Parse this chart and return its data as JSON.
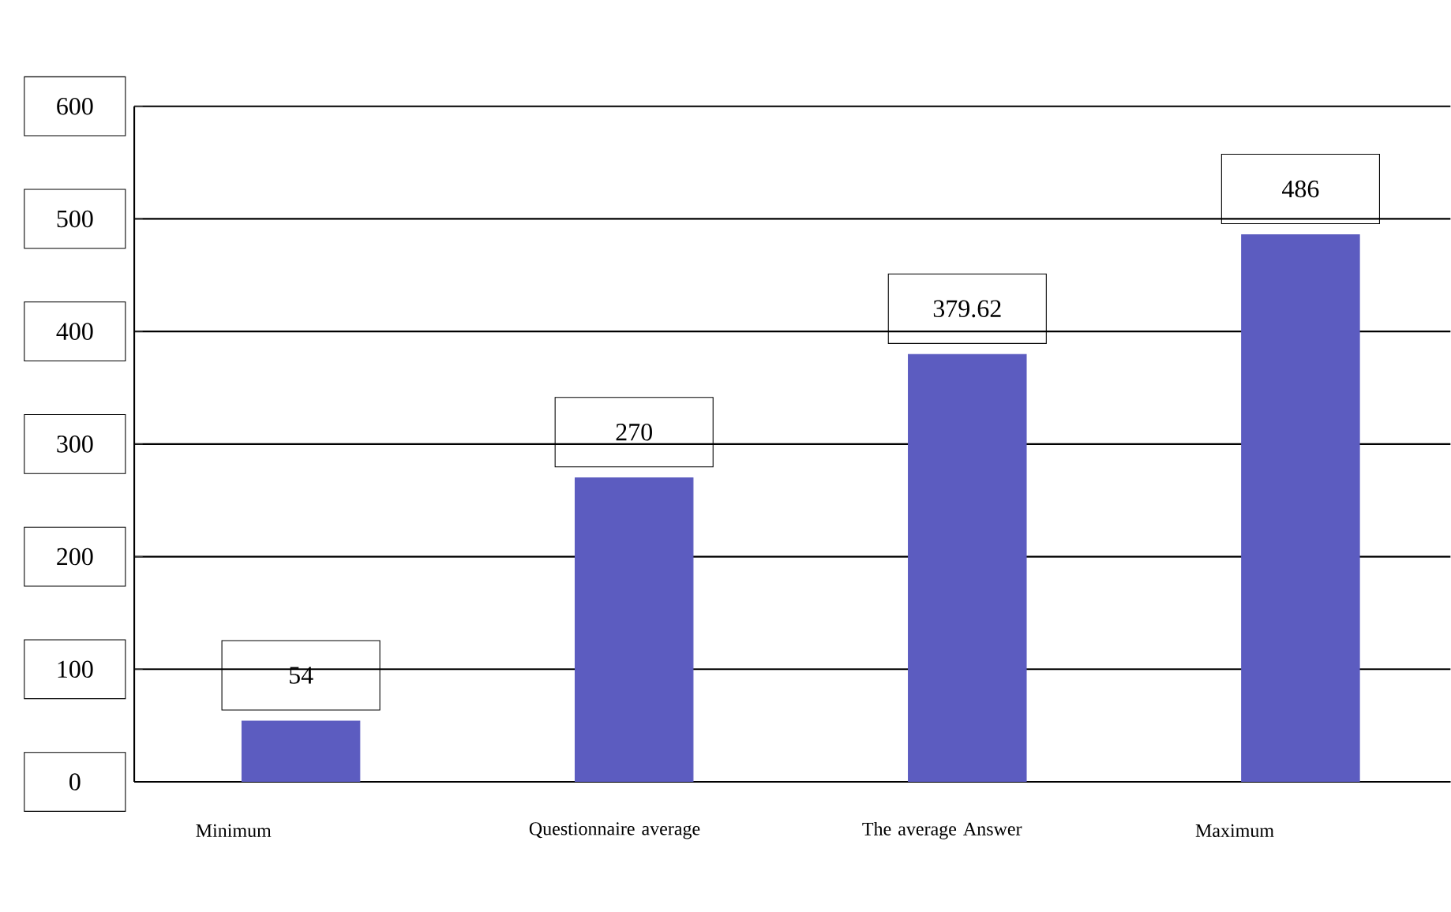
{
  "chart_data": {
    "type": "bar",
    "categories": [
      "Minimum",
      "Questionnaire average",
      "The average Answer",
      "Maximum"
    ],
    "values": [
      54,
      270,
      379.62,
      486
    ],
    "color": "#5c5cc0",
    "ylim": [
      0,
      600
    ],
    "yticks": [
      0,
      100,
      200,
      300,
      400,
      500,
      600
    ],
    "grid": "y",
    "data_labels": true
  }
}
